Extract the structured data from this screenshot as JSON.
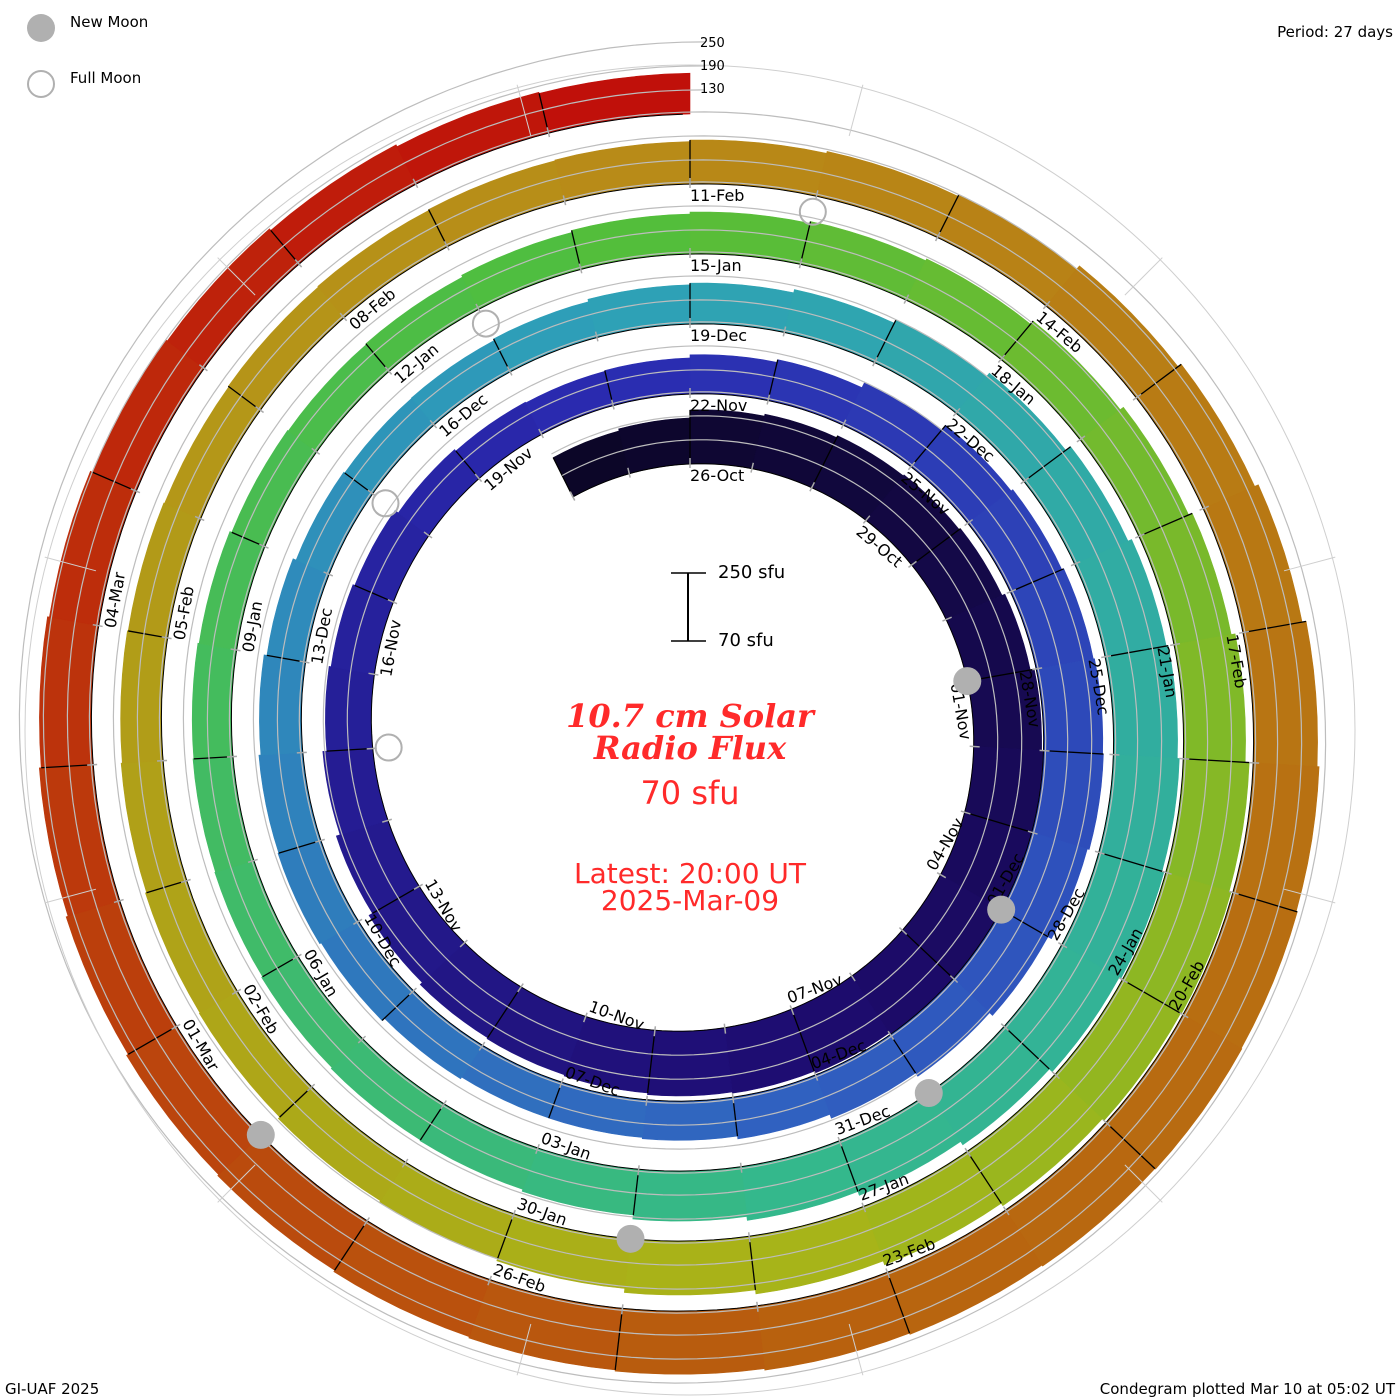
{
  "legend": {
    "new_moon": "New Moon",
    "full_moon": "Full Moon",
    "moon_color": "#b0b0b0"
  },
  "period": "Period: 27 days",
  "footer_left": "GI-UAF 2025",
  "footer_right": "Condegram plotted Mar 10 at 05:02 UT",
  "center": {
    "title_line1": "10.7 cm Solar",
    "title_line2": "Radio Flux",
    "baseline": "70 sfu",
    "latest": "Latest: 20:00 UT",
    "date": "2025-Mar-09",
    "scale_top": "250 sfu",
    "scale_bottom": "70 sfu",
    "text_color": "#ff2a2a"
  },
  "chart_data": {
    "type": "condegram-spiral",
    "title": "10.7 cm Solar Radio Flux",
    "units": "sfu",
    "period_days": 27,
    "baseline_sfu": 70,
    "scale_max_sfu": 250,
    "reference_levels": [
      130,
      190,
      250
    ],
    "reference_labels": [
      "130",
      "190",
      "250"
    ],
    "first_day_offset": -2,
    "daily_flux": [
      180,
      185,
      205,
      210,
      215,
      218,
      222,
      230,
      240,
      245,
      250,
      248,
      245,
      240,
      235,
      232,
      228,
      225,
      222,
      215,
      205,
      195,
      185,
      180,
      175,
      165,
      160,
      158,
      160,
      168,
      175,
      190,
      205,
      210,
      215,
      218,
      220,
      215,
      205,
      195,
      185,
      175,
      168,
      165,
      165,
      170,
      178,
      182,
      180,
      175,
      168,
      160,
      157,
      158,
      162,
      168,
      172,
      180,
      190,
      200,
      215,
      225,
      230,
      235,
      240,
      235,
      225,
      215,
      205,
      195,
      185,
      180,
      178,
      175,
      172,
      170,
      168,
      165,
      160,
      158,
      160,
      165,
      170,
      175,
      180,
      185,
      195,
      205,
      215,
      225,
      235,
      240,
      238,
      232,
      225,
      215,
      205,
      195,
      190,
      185,
      180,
      178,
      175,
      172,
      170,
      168,
      170,
      172,
      174,
      176,
      180,
      185,
      190,
      200,
      210,
      220,
      230,
      235,
      238,
      240,
      238,
      235,
      232,
      228,
      225,
      222,
      218,
      215,
      210,
      205,
      200,
      195,
      190,
      185,
      180,
      175,
      172
    ],
    "date_labels": [
      "26-Oct",
      "29-Oct",
      "01-Nov",
      "04-Nov",
      "07-Nov",
      "10-Nov",
      "13-Nov",
      "16-Nov",
      "19-Nov",
      "22-Nov",
      "25-Nov",
      "28-Nov",
      "01-Dec",
      "04-Dec",
      "07-Dec",
      "10-Dec",
      "13-Dec",
      "16-Dec",
      "19-Dec",
      "22-Dec",
      "25-Dec",
      "28-Dec",
      "31-Dec",
      "03-Jan",
      "06-Jan",
      "09-Jan",
      "12-Jan",
      "15-Jan",
      "18-Jan",
      "21-Jan",
      "24-Jan",
      "27-Jan",
      "30-Jan",
      "02-Feb",
      "05-Feb",
      "08-Feb",
      "11-Feb",
      "14-Feb",
      "17-Feb",
      "20-Feb",
      "23-Feb",
      "26-Feb",
      "01-Mar",
      "04-Mar"
    ],
    "label_interval_days": 3,
    "new_moon_days": [
      6,
      36,
      65,
      95,
      125
    ],
    "full_moon_days": [
      20,
      50,
      79,
      109
    ],
    "color_stops": [
      "#0c0628",
      "#1e0c70",
      "#2a2ab0",
      "#3060c0",
      "#2ea0b8",
      "#34b88c",
      "#50be3c",
      "#a8b418",
      "#b88c18",
      "#b8600e",
      "#c0100a"
    ]
  }
}
